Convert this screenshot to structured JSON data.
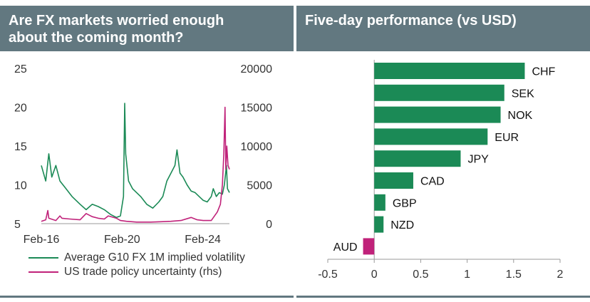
{
  "left": {
    "title": "Are FX markets worried enough\nabout the coming month?",
    "legend": [
      {
        "label": "Average G10 FX 1M implied volatility",
        "color": "#1b8a56"
      },
      {
        "label": "US trade policy uncertainty (rhs)",
        "color": "#c0227a"
      }
    ]
  },
  "right": {
    "title": "Five-day performance (vs USD)"
  },
  "chart_data": [
    {
      "type": "line",
      "title": "Are FX markets worried enough about the coming month?",
      "x_start_year": 2016.08,
      "x_end_year": 2025.4,
      "xticks": [
        {
          "label": "Feb-16",
          "year": 2016.08
        },
        {
          "label": "Feb-20",
          "year": 2020.08
        },
        {
          "label": "Feb-24",
          "year": 2024.08
        }
      ],
      "y_left": {
        "min": 5,
        "max": 25,
        "ticks": [
          5,
          10,
          15,
          20,
          25
        ]
      },
      "y_right": {
        "min": 0,
        "max": 20000,
        "ticks": [
          0,
          5000,
          10000,
          15000,
          20000
        ]
      },
      "series": [
        {
          "name": "Average G10 FX 1M implied volatility",
          "axis": "left",
          "color": "#1b8a56",
          "points": [
            [
              2016.08,
              12.5
            ],
            [
              2016.3,
              10.5
            ],
            [
              2016.45,
              14.0
            ],
            [
              2016.6,
              11.0
            ],
            [
              2016.8,
              12.5
            ],
            [
              2017.0,
              10.5
            ],
            [
              2017.3,
              9.5
            ],
            [
              2017.6,
              8.5
            ],
            [
              2018.0,
              7.5
            ],
            [
              2018.3,
              6.8
            ],
            [
              2018.6,
              7.5
            ],
            [
              2018.9,
              7.2
            ],
            [
              2019.2,
              6.8
            ],
            [
              2019.5,
              6.2
            ],
            [
              2019.8,
              5.8
            ],
            [
              2020.0,
              6.0
            ],
            [
              2020.15,
              8.5
            ],
            [
              2020.21,
              20.5
            ],
            [
              2020.26,
              14.0
            ],
            [
              2020.4,
              10.5
            ],
            [
              2020.6,
              9.5
            ],
            [
              2020.8,
              9.0
            ],
            [
              2021.0,
              8.5
            ],
            [
              2021.3,
              7.5
            ],
            [
              2021.6,
              7.0
            ],
            [
              2021.9,
              7.8
            ],
            [
              2022.1,
              8.5
            ],
            [
              2022.3,
              10.5
            ],
            [
              2022.5,
              11.5
            ],
            [
              2022.7,
              12.5
            ],
            [
              2022.8,
              14.5
            ],
            [
              2022.95,
              11.5
            ],
            [
              2023.1,
              11.0
            ],
            [
              2023.3,
              10.0
            ],
            [
              2023.5,
              9.2
            ],
            [
              2023.7,
              9.0
            ],
            [
              2023.9,
              8.5
            ],
            [
              2024.1,
              8.0
            ],
            [
              2024.3,
              7.8
            ],
            [
              2024.5,
              8.5
            ],
            [
              2024.6,
              9.5
            ],
            [
              2024.75,
              8.5
            ],
            [
              2024.9,
              9.0
            ],
            [
              2025.05,
              8.8
            ],
            [
              2025.15,
              10.0
            ],
            [
              2025.25,
              12.5
            ],
            [
              2025.3,
              9.5
            ],
            [
              2025.4,
              9.0
            ]
          ]
        },
        {
          "name": "US trade policy uncertainty (rhs)",
          "axis": "right",
          "color": "#c0227a",
          "points": [
            [
              2016.08,
              300
            ],
            [
              2016.3,
              500
            ],
            [
              2016.4,
              1700
            ],
            [
              2016.45,
              700
            ],
            [
              2016.8,
              400
            ],
            [
              2017.0,
              1000
            ],
            [
              2017.1,
              700
            ],
            [
              2017.5,
              600
            ],
            [
              2018.0,
              500
            ],
            [
              2018.3,
              1300
            ],
            [
              2018.6,
              900
            ],
            [
              2018.9,
              700
            ],
            [
              2019.2,
              600
            ],
            [
              2019.4,
              1000
            ],
            [
              2019.8,
              700
            ],
            [
              2020.0,
              400
            ],
            [
              2020.3,
              300
            ],
            [
              2020.8,
              200
            ],
            [
              2021.5,
              200
            ],
            [
              2022.0,
              250
            ],
            [
              2022.5,
              300
            ],
            [
              2023.0,
              400
            ],
            [
              2023.5,
              800
            ],
            [
              2023.8,
              500
            ],
            [
              2024.1,
              400
            ],
            [
              2024.5,
              400
            ],
            [
              2024.8,
              1500
            ],
            [
              2024.95,
              2500
            ],
            [
              2025.05,
              5000
            ],
            [
              2025.12,
              9000
            ],
            [
              2025.18,
              15000
            ],
            [
              2025.22,
              7000
            ],
            [
              2025.27,
              10000
            ],
            [
              2025.33,
              7500
            ],
            [
              2025.4,
              7000
            ]
          ]
        }
      ]
    },
    {
      "type": "bar",
      "orientation": "horizontal",
      "title": "Five-day performance (vs USD)",
      "categories": [
        "CHF",
        "SEK",
        "NOK",
        "EUR",
        "JPY",
        "CAD",
        "GBP",
        "NZD",
        "AUD"
      ],
      "values": [
        1.62,
        1.4,
        1.36,
        1.22,
        0.93,
        0.42,
        0.12,
        0.1,
        -0.12
      ],
      "xlim": [
        -0.5,
        2
      ],
      "xticks": [
        -0.5,
        0,
        0.5,
        1,
        1.5,
        2
      ],
      "colors": {
        "positive": "#1b8a56",
        "negative": "#c0227a"
      }
    }
  ]
}
